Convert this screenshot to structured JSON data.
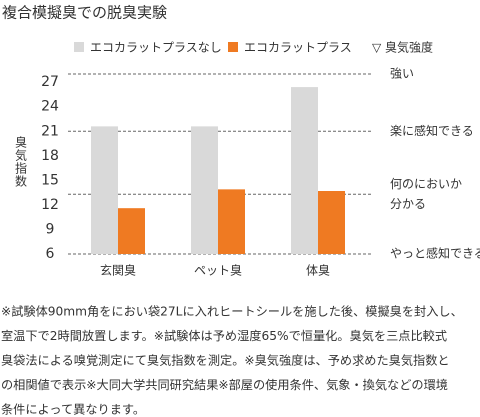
{
  "title": "複合模擬臭での脱臭実験",
  "chart_data": {
    "type": "bar",
    "categories": [
      "玄関臭",
      "ペット臭",
      "体臭"
    ],
    "series": [
      {
        "name": "エコカラットプラスなし",
        "color": "#d9d9d9",
        "values": [
          21.6,
          21.6,
          26.4
        ]
      },
      {
        "name": "エコカラットプラス",
        "color": "#ef7a22",
        "values": [
          11.6,
          13.9,
          13.7
        ]
      }
    ],
    "y_label": "臭気指数",
    "ylim": [
      6,
      28
    ],
    "yticks": [
      6,
      9,
      12,
      15,
      18,
      21,
      24,
      27
    ],
    "reference_title": "▽ 臭気強度",
    "reference_lines": [
      {
        "value": 28,
        "label": [
          "強い"
        ]
      },
      {
        "value": 21,
        "label": [
          "楽に感知できる"
        ]
      },
      {
        "value": 13.3,
        "label": [
          "何のにおいか",
          "分かる"
        ]
      },
      {
        "value": 6,
        "label": [
          "やっと感知できる"
        ]
      }
    ]
  },
  "notes": [
    "※試験体90mm角をにおい袋27Lに入れヒートシールを施した後、模擬臭を封入し、",
    "室温下で2時間放置します。※試験体は予め湿度65%で恒量化。臭気を三点比較式",
    "臭袋法による嗅覚測定にて臭気指数を測定。※臭気強度は、予め求めた臭気指数と",
    "の相関値で表示※大同大学共同研究結果※部屋の使用条件、気象・換気などの環境",
    "条件によって異なります。"
  ]
}
